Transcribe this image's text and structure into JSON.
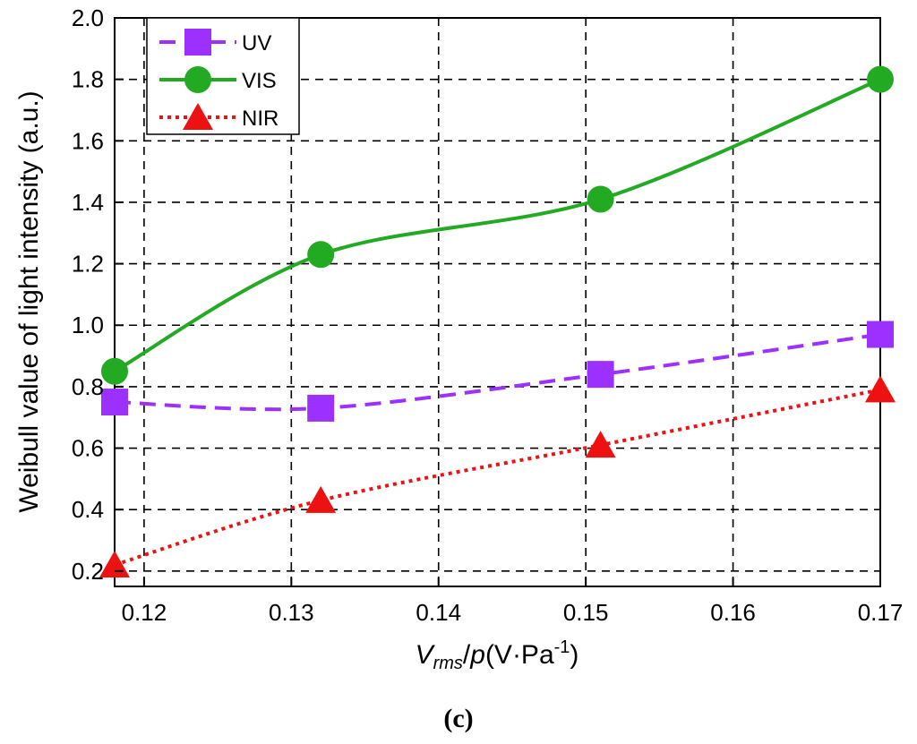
{
  "chart_data": {
    "type": "line",
    "x_ticks": [
      0.12,
      0.13,
      0.14,
      0.15,
      0.16,
      0.17
    ],
    "x_tick_labels": [
      "0.12",
      "0.13",
      "0.14",
      "0.15",
      "0.16",
      "0.17"
    ],
    "y_ticks": [
      0.2,
      0.4,
      0.6,
      0.8,
      1.0,
      1.2,
      1.4,
      1.6,
      1.8,
      2.0
    ],
    "y_tick_labels": [
      "0.2",
      "0.4",
      "0.6",
      "0.8",
      "1.0",
      "1.2",
      "1.4",
      "1.6",
      "1.8",
      "2.0"
    ],
    "xlim": [
      0.118,
      0.17
    ],
    "ylim": [
      0.15,
      2.0
    ],
    "grid": true,
    "legend_position": "top-left",
    "xlabel": {
      "v": "V",
      "sub": "rms",
      "slash": "/",
      "p": "p",
      "unit_open": "(V·Pa",
      "sup": "-1",
      "unit_close": ")"
    },
    "ylabel": "Weibull value of light intensity (a.u.)",
    "caption": "(c)",
    "series": [
      {
        "name": "UV",
        "color": "#9b30ff",
        "line_style": "dashed",
        "marker": "square",
        "x": [
          0.118,
          0.132,
          0.151,
          0.17
        ],
        "y": [
          0.75,
          0.73,
          0.84,
          0.97
        ]
      },
      {
        "name": "VIS",
        "color": "#22aa22",
        "line_style": "solid",
        "marker": "circle",
        "x": [
          0.118,
          0.132,
          0.151,
          0.17
        ],
        "y": [
          0.85,
          1.23,
          1.41,
          1.8
        ]
      },
      {
        "name": "NIR",
        "color": "#ee1111",
        "line_style": "dotted",
        "marker": "triangle",
        "x": [
          0.118,
          0.132,
          0.151,
          0.17
        ],
        "y": [
          0.22,
          0.43,
          0.61,
          0.79
        ]
      }
    ]
  }
}
